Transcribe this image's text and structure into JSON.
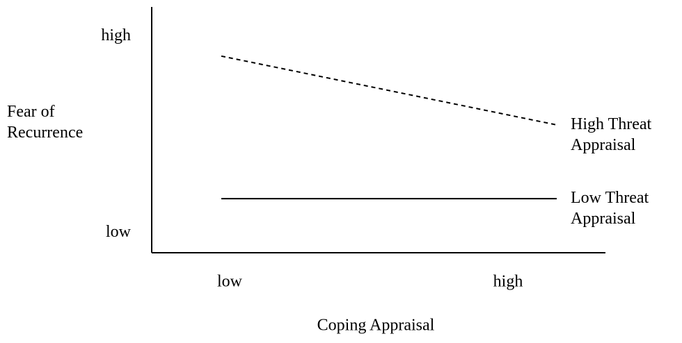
{
  "chart_data": {
    "type": "line",
    "x_label": "Coping Appraisal",
    "y_label": "Fear of Recurrence",
    "categories": [
      "low",
      "high"
    ],
    "ylim": [
      0,
      100
    ],
    "yticks": [
      {
        "value": 8,
        "label": "low"
      },
      {
        "value": 88,
        "label": "high"
      }
    ],
    "series": [
      {
        "name": "High Threat Appraisal",
        "color": "#000000",
        "style": "dashed",
        "values": [
          80,
          52
        ]
      },
      {
        "name": "Low Threat Appraisal",
        "color": "#000000",
        "style": "solid",
        "values": [
          22,
          22
        ]
      }
    ]
  }
}
